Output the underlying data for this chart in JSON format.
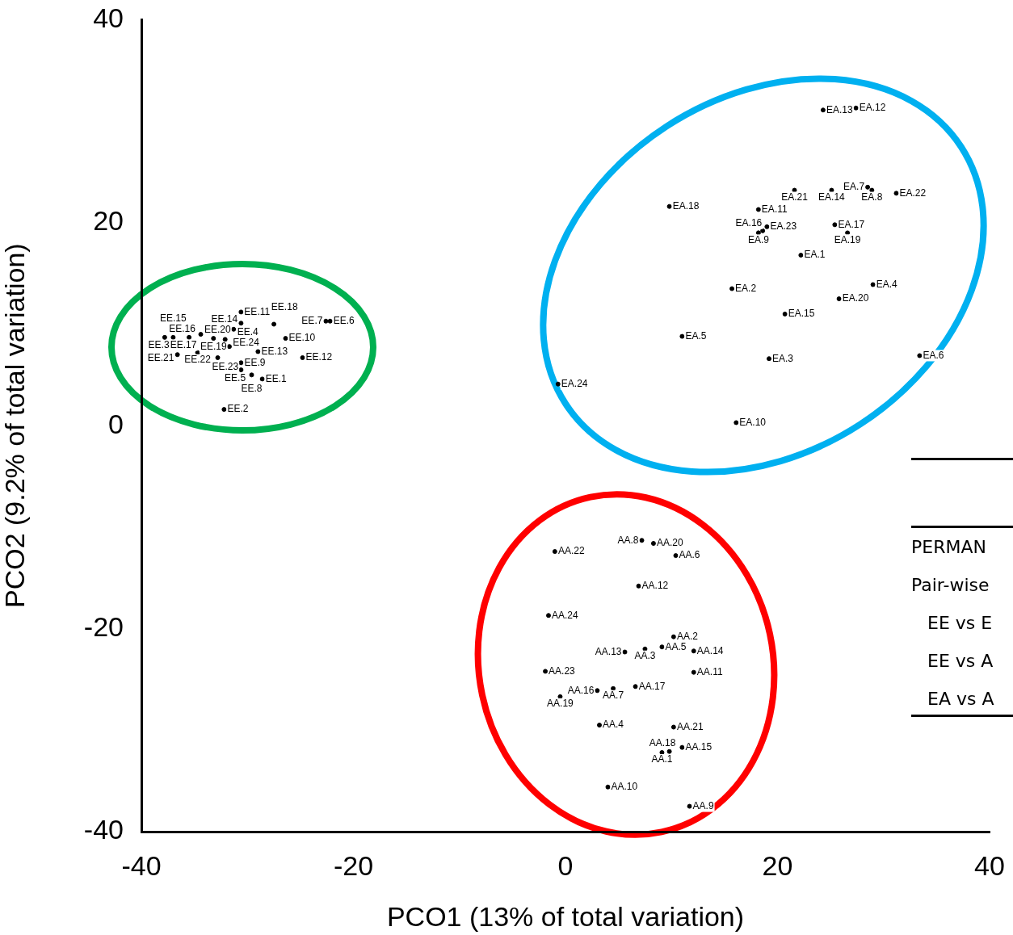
{
  "chart_data": {
    "type": "scatter",
    "xlabel": "PCO1 (13% of total variation)",
    "ylabel": "PCO2 (9.2% of total variation)",
    "xlim": [
      -40,
      40
    ],
    "ylim": [
      -40,
      40
    ],
    "xticks": [
      -40,
      -20,
      0,
      20,
      40
    ],
    "yticks": [
      -40,
      -20,
      0,
      20,
      40
    ],
    "marker": "circle",
    "grid": false,
    "legend": false,
    "series": [
      {
        "color": "#000000",
        "x": [
          -28.6,
          -32.2,
          -37.8,
          -31.3,
          -30.6,
          -22.2,
          -22.6,
          -29.6,
          -30.6,
          -26.4,
          -30.6,
          -24.8,
          -29.0,
          -30.6,
          -37.0,
          -35.5,
          -34.4,
          -27.5,
          -33.2,
          -32.1,
          -36.6,
          -34.7,
          -32.8,
          -31.7
        ],
        "values": [
          4.6,
          1.6,
          8.7,
          9.5,
          5.5,
          10.3,
          10.3,
          5.0,
          6.2,
          8.6,
          11.2,
          6.7,
          7.3,
          10.1,
          8.7,
          8.7,
          9.0,
          10.0,
          8.6,
          8.5,
          7.0,
          7.2,
          6.7,
          7.8
        ],
        "value_labels": [
          "EE.1",
          "EE.2",
          "EE.3",
          "EE.4",
          "EE.5",
          "EE.6",
          "EE.7",
          "EE.8",
          "EE.9",
          "EE.10",
          "EE.11",
          "EE.12",
          "EE.13",
          "EE.14",
          "EE.15",
          "EE.16",
          "EE.17",
          "EE.18",
          "EE.19",
          "EE.20",
          "EE.21",
          "EE.22",
          "EE.23",
          "EE.24"
        ]
      },
      {
        "color": "#000000",
        "x": [
          22.2,
          15.7,
          19.2,
          29.0,
          11.0,
          33.4,
          28.5,
          28.9,
          18.2,
          16.1,
          18.2,
          27.4,
          24.3,
          25.1,
          20.7,
          18.6,
          25.4,
          9.8,
          26.6,
          25.8,
          21.6,
          31.2,
          19.0,
          -0.7
        ],
        "values": [
          16.8,
          13.5,
          6.6,
          13.9,
          8.8,
          6.9,
          23.5,
          23.2,
          19.0,
          0.3,
          21.3,
          31.3,
          31.1,
          23.2,
          11.0,
          19.2,
          19.8,
          21.6,
          19.0,
          12.5,
          23.2,
          22.9,
          19.6,
          4.1
        ],
        "value_labels": [
          "EA.1",
          "EA.2",
          "EA.3",
          "EA.4",
          "EA.5",
          "EA.6",
          "EA.7",
          "EA.8",
          "EA.9",
          "EA.10",
          "EA.11",
          "EA.12",
          "EA.13",
          "EA.14",
          "EA.15",
          "EA.16",
          "EA.17",
          "EA.18",
          "EA.19",
          "EA.20",
          "EA.21",
          "EA.22",
          "EA.23",
          "EA.24"
        ]
      },
      {
        "color": "#000000",
        "x": [
          9.1,
          10.2,
          7.5,
          3.2,
          9.1,
          10.4,
          4.5,
          7.2,
          11.7,
          4.0,
          12.1,
          6.9,
          5.6,
          12.1,
          11.0,
          3.0,
          6.6,
          9.8,
          -0.5,
          8.3,
          10.2,
          -1.0,
          -1.9,
          -1.6
        ],
        "values": [
          -32.2,
          -20.8,
          -22.0,
          -29.5,
          -21.8,
          -12.8,
          -25.9,
          -11.3,
          -37.5,
          -35.6,
          -24.3,
          -15.8,
          -22.3,
          -22.2,
          -31.7,
          -26.1,
          -25.7,
          -32.1,
          -26.7,
          -11.6,
          -29.7,
          -12.4,
          -24.2,
          -18.7
        ],
        "value_labels": [
          "AA.1",
          "AA.2",
          "AA.3",
          "AA.4",
          "AA.5",
          "AA.6",
          "AA.7",
          "AA.8",
          "AA.9",
          "AA.10",
          "AA.11",
          "AA.12",
          "AA.13",
          "AA.14",
          "AA.15",
          "AA.16",
          "AA.17",
          "AA.18",
          "AA.19",
          "AA.20",
          "AA.21",
          "AA.22",
          "AA.23",
          "AA.24"
        ]
      }
    ],
    "annotations": [
      "PERMAN",
      "Pair-wise",
      "EE vs E",
      "EE vs A",
      "EA vs A"
    ]
  }
}
